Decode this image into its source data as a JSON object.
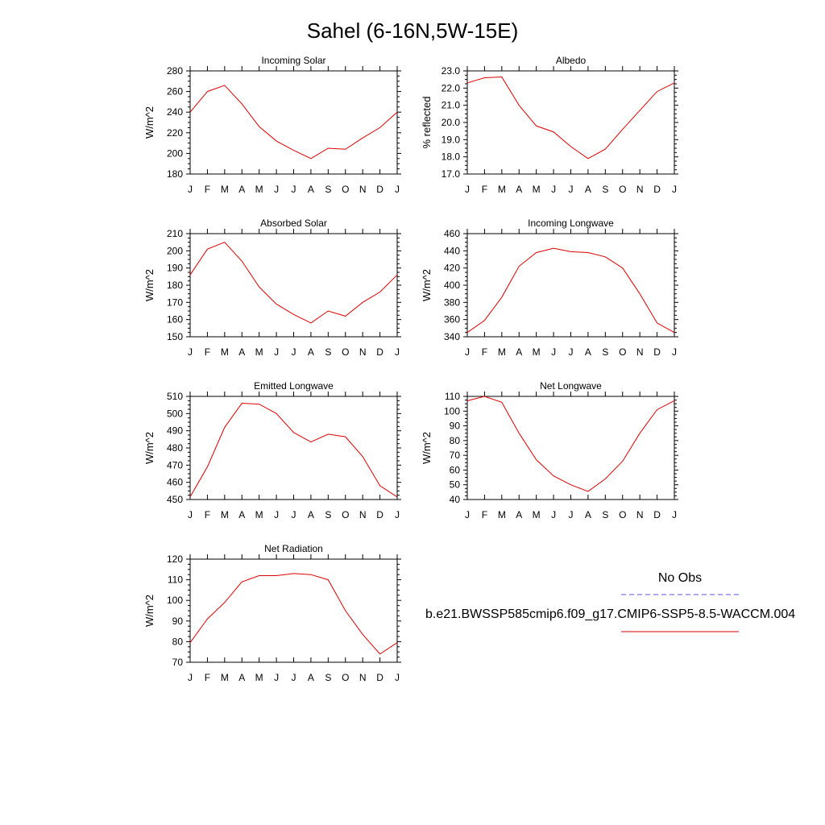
{
  "title": "Sahel (6-16N,5W-15E)",
  "months": [
    "J",
    "F",
    "M",
    "A",
    "M",
    "J",
    "J",
    "A",
    "S",
    "O",
    "N",
    "D",
    "J"
  ],
  "legend": {
    "obs_label": "No Obs",
    "obs_color": "#5555dd",
    "model_label": "b.e21.BWSSP585cmip6.f09_g17.CMIP6-SSP5-8.5-WACCM.004",
    "model_color": "#dd0000"
  },
  "chart_data": [
    {
      "type": "line",
      "title": "Incoming Solar",
      "ylabel": "W/m^2",
      "ylim": [
        180,
        280
      ],
      "yticks": [
        180,
        200,
        220,
        240,
        260,
        280
      ],
      "ytick_labels": [
        "180",
        "200",
        "220",
        "240",
        "260",
        "280"
      ],
      "series": [
        {
          "values": [
            240,
            260,
            266,
            248,
            226,
            212,
            203,
            195,
            205,
            204,
            215,
            225,
            240
          ]
        }
      ]
    },
    {
      "type": "line",
      "title": "Albedo",
      "ylabel": "% reflected",
      "ylim": [
        17,
        23
      ],
      "yticks": [
        17,
        18,
        19,
        20,
        21,
        22,
        23
      ],
      "ytick_labels": [
        "17.0",
        "18.0",
        "19.0",
        "20.0",
        "21.0",
        "22.0",
        "23.0"
      ],
      "series": [
        {
          "values": [
            22.3,
            22.6,
            22.65,
            21.0,
            19.8,
            19.45,
            18.6,
            17.9,
            18.45,
            19.6,
            20.7,
            21.8,
            22.3
          ]
        }
      ]
    },
    {
      "type": "line",
      "title": "Absorbed Solar",
      "ylabel": "W/m^2",
      "ylim": [
        150,
        210
      ],
      "yticks": [
        150,
        160,
        170,
        180,
        190,
        200,
        210
      ],
      "ytick_labels": [
        "150",
        "160",
        "170",
        "180",
        "190",
        "200",
        "210"
      ],
      "series": [
        {
          "values": [
            186,
            201,
            205,
            194,
            179,
            169,
            163,
            158,
            165,
            162,
            170,
            176,
            186
          ]
        }
      ]
    },
    {
      "type": "line",
      "title": "Incoming Longwave",
      "ylabel": "W/m^2",
      "ylim": [
        340,
        460
      ],
      "yticks": [
        340,
        360,
        380,
        400,
        420,
        440,
        460
      ],
      "ytick_labels": [
        "340",
        "360",
        "380",
        "400",
        "420",
        "440",
        "460"
      ],
      "series": [
        {
          "values": [
            345,
            359,
            386,
            422,
            438,
            443,
            439,
            438,
            433,
            420,
            390,
            356,
            345
          ]
        }
      ]
    },
    {
      "type": "line",
      "title": "Emitted Longwave",
      "ylabel": "W/m^2",
      "ylim": [
        450,
        510
      ],
      "yticks": [
        450,
        460,
        470,
        480,
        490,
        500,
        510
      ],
      "ytick_labels": [
        "450",
        "460",
        "470",
        "480",
        "490",
        "500",
        "510"
      ],
      "series": [
        {
          "values": [
            451.5,
            469,
            492,
            506,
            505.5,
            500,
            489,
            483.5,
            488,
            486.5,
            475,
            458,
            451.5
          ]
        }
      ]
    },
    {
      "type": "line",
      "title": "Net Longwave",
      "ylabel": "W/m^2",
      "ylim": [
        40,
        110
      ],
      "yticks": [
        40,
        50,
        60,
        70,
        80,
        90,
        100,
        110
      ],
      "ytick_labels": [
        "40",
        "50",
        "60",
        "70",
        "80",
        "90",
        "100",
        "110"
      ],
      "series": [
        {
          "values": [
            107,
            110,
            106,
            85,
            67,
            56,
            50,
            45.5,
            54,
            66,
            85,
            101,
            107
          ]
        }
      ]
    },
    {
      "type": "line",
      "title": "Net Radiation",
      "ylabel": "W/m^2",
      "ylim": [
        70,
        120
      ],
      "yticks": [
        70,
        80,
        90,
        100,
        110,
        120
      ],
      "ytick_labels": [
        "70",
        "80",
        "90",
        "100",
        "110",
        "120"
      ],
      "series": [
        {
          "values": [
            79.5,
            91,
            99,
            109,
            112,
            112,
            113,
            112.5,
            110,
            95,
            83.5,
            74,
            79.5
          ]
        }
      ]
    }
  ]
}
